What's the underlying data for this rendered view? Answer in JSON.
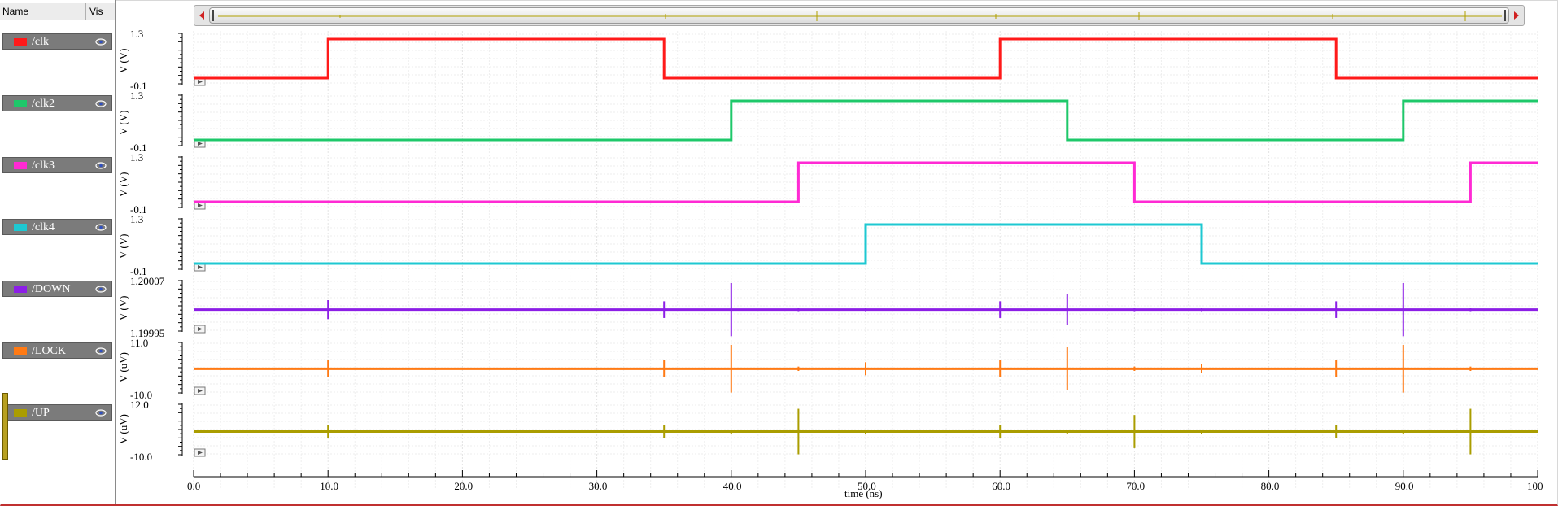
{
  "sidebar": {
    "header": {
      "name_col": "Name",
      "vis_col": "Vis"
    },
    "signals": [
      {
        "label": "/clk",
        "color": "#ff1a1a",
        "icon": "eye-icon"
      },
      {
        "label": "/clk2",
        "color": "#1ec86a",
        "icon": "eye-icon"
      },
      {
        "label": "/clk3",
        "color": "#ff2ad4",
        "icon": "eye-icon"
      },
      {
        "label": "/clk4",
        "color": "#1ec8d2",
        "icon": "eye-icon"
      },
      {
        "label": "/DOWN",
        "color": "#8c1ee6",
        "icon": "eye-icon"
      },
      {
        "label": "/LOCK",
        "color": "#ff7a14",
        "icon": "eye-icon"
      },
      {
        "label": "/UP",
        "color": "#aa9d00",
        "icon": "eye-icon"
      }
    ]
  },
  "chart_data": {
    "type": "line",
    "xlabel": "time (ns)",
    "xlim": [
      0,
      100
    ],
    "xticks": [
      "0.0",
      "10.0",
      "20.0",
      "30.0",
      "40.0",
      "50.0",
      "60.0",
      "70.0",
      "80.0",
      "90.0",
      "100"
    ],
    "grid": true,
    "panels": [
      {
        "name": "/clk",
        "ylabel": "V (V)",
        "ytop": "1.3",
        "ybottom": "-0.1",
        "ylim": [
          -0.1,
          1.3
        ],
        "kind": "digital",
        "color": "#ff1a1a",
        "initial": 0,
        "transitions": [
          10,
          35,
          60,
          85
        ]
      },
      {
        "name": "/clk2",
        "ylabel": "V (V)",
        "ytop": "1.3",
        "ybottom": "-0.1",
        "ylim": [
          -0.1,
          1.3
        ],
        "kind": "digital",
        "color": "#1ec86a",
        "initial": 0,
        "transitions": [
          40,
          65,
          90
        ]
      },
      {
        "name": "/clk3",
        "ylabel": "V (V)",
        "ytop": "1.3",
        "ybottom": "-0.1",
        "ylim": [
          -0.1,
          1.3
        ],
        "kind": "digital",
        "color": "#ff2ad4",
        "initial": 0,
        "transitions": [
          45,
          70,
          95
        ]
      },
      {
        "name": "/clk4",
        "ylabel": "V (V)",
        "ytop": "1.3",
        "ybottom": "-0.1",
        "ylim": [
          -0.1,
          1.3
        ],
        "kind": "digital",
        "color": "#1ec8d2",
        "initial": 0,
        "transitions": [
          50,
          75
        ]
      },
      {
        "name": "/DOWN",
        "ylabel": "V (V)",
        "ytop": "1.20007",
        "ybottom": "1.19995",
        "ylim": [
          1.19995,
          1.20007
        ],
        "kind": "glitch",
        "color": "#8c1ee6",
        "baseline": 1.2,
        "glitches": [
          [
            10,
            2.5e-05
          ],
          [
            35,
            2.2e-05
          ],
          [
            40,
            7e-05
          ],
          [
            45,
            4e-06
          ],
          [
            50,
            4e-06
          ],
          [
            60,
            2.2e-05
          ],
          [
            65,
            4e-05
          ],
          [
            70,
            4e-06
          ],
          [
            75,
            4e-06
          ],
          [
            85,
            2.2e-05
          ],
          [
            90,
            7e-05
          ],
          [
            95,
            4e-06
          ]
        ]
      },
      {
        "name": "/LOCK",
        "ylabel": "V (uV)",
        "ytop": "11.0",
        "ybottom": "-10.0",
        "ylim": [
          -10.0,
          11.0
        ],
        "kind": "glitch",
        "color": "#ff7a14",
        "baseline": 0,
        "glitches": [
          [
            10,
            4
          ],
          [
            35,
            4
          ],
          [
            40,
            11
          ],
          [
            45,
            1
          ],
          [
            50,
            3
          ],
          [
            60,
            4
          ],
          [
            65,
            10
          ],
          [
            70,
            1
          ],
          [
            75,
            2
          ],
          [
            85,
            4
          ],
          [
            90,
            11
          ],
          [
            95,
            1
          ]
        ]
      },
      {
        "name": "/UP",
        "ylabel": "V (uV)",
        "ytop": "12.0",
        "ybottom": "-10.0",
        "ylim": [
          -10.0,
          12.0
        ],
        "kind": "glitch",
        "color": "#aa9d00",
        "baseline": 0,
        "glitches": [
          [
            10,
            3
          ],
          [
            35,
            3
          ],
          [
            40,
            1
          ],
          [
            45,
            11
          ],
          [
            50,
            1
          ],
          [
            60,
            3
          ],
          [
            65,
            1
          ],
          [
            70,
            8
          ],
          [
            75,
            1
          ],
          [
            85,
            3
          ],
          [
            90,
            1
          ],
          [
            95,
            11
          ]
        ]
      }
    ]
  }
}
